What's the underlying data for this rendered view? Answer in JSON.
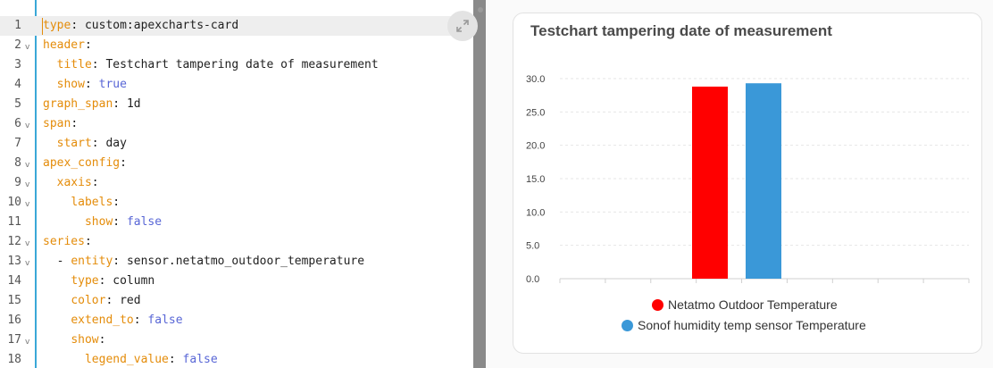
{
  "editor": {
    "lines": [
      {
        "n": "1",
        "fold": "",
        "indent": "",
        "key": "type",
        "sep": ": ",
        "val": "custom:apexcharts-card",
        "valType": "str"
      },
      {
        "n": "2",
        "fold": "v",
        "indent": "",
        "key": "header",
        "sep": ":",
        "val": "",
        "valType": "str"
      },
      {
        "n": "3",
        "fold": "",
        "indent": "  ",
        "key": "title",
        "sep": ": ",
        "val": "Testchart tampering date of measurement",
        "valType": "str"
      },
      {
        "n": "4",
        "fold": "",
        "indent": "  ",
        "key": "show",
        "sep": ": ",
        "val": "true",
        "valType": "bool"
      },
      {
        "n": "5",
        "fold": "",
        "indent": "",
        "key": "graph_span",
        "sep": ": ",
        "val": "1d",
        "valType": "str"
      },
      {
        "n": "6",
        "fold": "v",
        "indent": "",
        "key": "span",
        "sep": ":",
        "val": "",
        "valType": "str"
      },
      {
        "n": "7",
        "fold": "",
        "indent": "  ",
        "key": "start",
        "sep": ": ",
        "val": "day",
        "valType": "str"
      },
      {
        "n": "8",
        "fold": "v",
        "indent": "",
        "key": "apex_config",
        "sep": ":",
        "val": "",
        "valType": "str"
      },
      {
        "n": "9",
        "fold": "v",
        "indent": "  ",
        "key": "xaxis",
        "sep": ":",
        "val": "",
        "valType": "str"
      },
      {
        "n": "10",
        "fold": "v",
        "indent": "    ",
        "key": "labels",
        "sep": ":",
        "val": "",
        "valType": "str"
      },
      {
        "n": "11",
        "fold": "",
        "indent": "      ",
        "key": "show",
        "sep": ": ",
        "val": "false",
        "valType": "bool"
      },
      {
        "n": "12",
        "fold": "v",
        "indent": "",
        "key": "series",
        "sep": ":",
        "val": "",
        "valType": "str"
      },
      {
        "n": "13",
        "fold": "v",
        "indent": "  - ",
        "key": "entity",
        "sep": ": ",
        "val": "sensor.netatmo_outdoor_temperature",
        "valType": "str"
      },
      {
        "n": "14",
        "fold": "",
        "indent": "    ",
        "key": "type",
        "sep": ": ",
        "val": "column",
        "valType": "str"
      },
      {
        "n": "15",
        "fold": "",
        "indent": "    ",
        "key": "color",
        "sep": ": ",
        "val": "red",
        "valType": "str"
      },
      {
        "n": "16",
        "fold": "",
        "indent": "    ",
        "key": "extend_to",
        "sep": ": ",
        "val": "false",
        "valType": "bool"
      },
      {
        "n": "17",
        "fold": "v",
        "indent": "    ",
        "key": "show",
        "sep": ":",
        "val": "",
        "valType": "str"
      },
      {
        "n": "18",
        "fold": "",
        "indent": "      ",
        "key": "legend_value",
        "sep": ": ",
        "val": "false",
        "valType": "bool"
      }
    ],
    "expand_icon": "expand-arrows-icon"
  },
  "card": {
    "title": "Testchart tampering date of measurement"
  },
  "chart_data": {
    "type": "bar",
    "ylim": [
      0,
      30
    ],
    "yticks": [
      "0.0",
      "5.0",
      "10.0",
      "15.0",
      "20.0",
      "25.0",
      "30.0"
    ],
    "grid": true,
    "legend_position": "bottom",
    "series": [
      {
        "name": "Netatmo Outdoor Temperature",
        "value": 28.8,
        "color": "#ff0000"
      },
      {
        "name": "Sonof humidity temp sensor Temperature",
        "value": 29.3,
        "color": "#3a98d8"
      }
    ]
  },
  "colors": {
    "gutter_accent": "#3aa8d8",
    "yaml_key": "#e48c0a",
    "yaml_bool": "#5866d6"
  }
}
